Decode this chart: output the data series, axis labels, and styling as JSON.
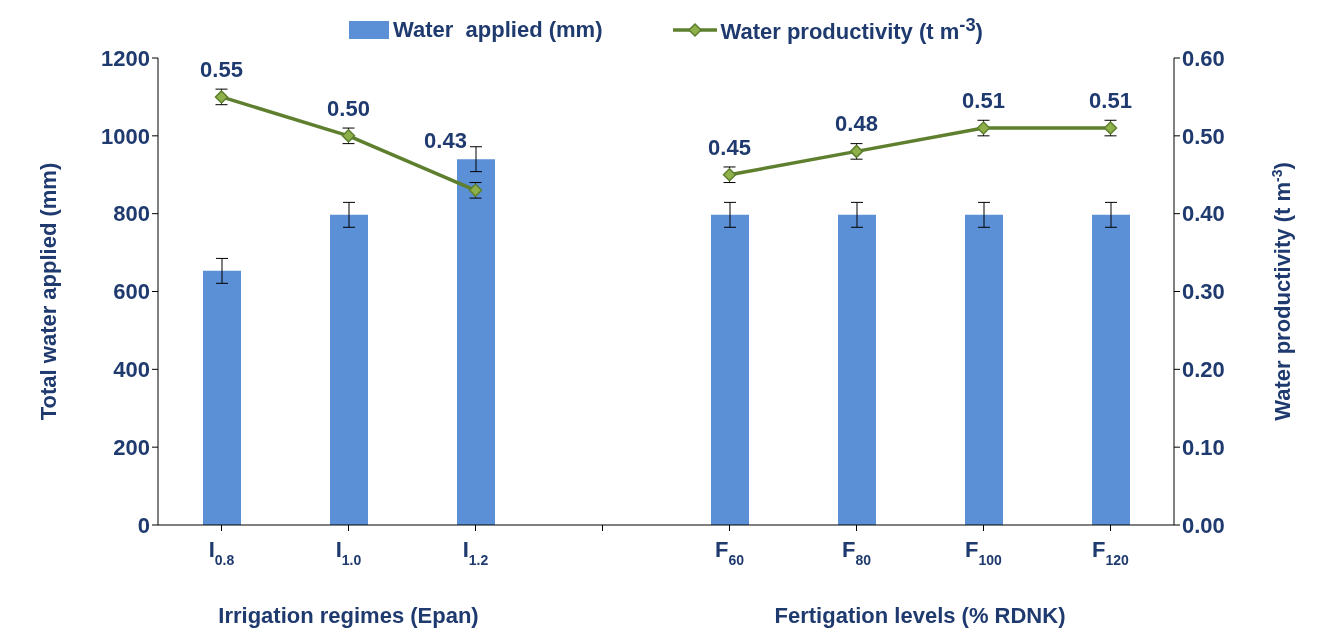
{
  "chart_data": {
    "type": "bar",
    "categories": [
      "I$_{0.8}$",
      "I$_{1.0}$",
      "I$_{1.2}$",
      null,
      "F$_{60}$",
      "F$_{80}$",
      "F$_{100}$",
      "F$_{120}$"
    ],
    "series": [
      {
        "name": "Water  applied (mm)",
        "color": "#5b8fd6",
        "values": [
          653,
          797,
          940,
          null,
          797,
          797,
          797,
          797
        ],
        "errors": [
          32,
          32,
          32,
          null,
          32,
          32,
          32,
          32
        ]
      },
      {
        "name": "Water productivity (t m$^{-3}$)",
        "type": "line",
        "axis": "y2",
        "color": "#5e7f2e",
        "values": [
          0.55,
          0.5,
          0.43,
          null,
          0.45,
          0.48,
          0.51,
          0.51
        ],
        "errors": [
          0.01,
          0.01,
          0.01,
          null,
          0.01,
          0.01,
          0.01,
          0.01
        ],
        "value_labels": [
          "0.55",
          "0.50",
          "0.43",
          null,
          "0.45",
          "0.48",
          "0.51",
          "0.51"
        ]
      }
    ],
    "ylabel": "Total water applied (mm)",
    "y2label": "Water productivity (t m$^{-3}$)",
    "ylim": [
      0,
      1200
    ],
    "yticks": [
      0,
      200,
      400,
      600,
      800,
      1000,
      1200
    ],
    "y2lim": [
      0,
      0.6
    ],
    "y2ticks": [
      {
        "value": 0,
        "label": "0.00"
      },
      {
        "value": 0.1,
        "label": "0.10"
      },
      {
        "value": 0.2,
        "label": "0.20"
      },
      {
        "value": 0.3,
        "label": "0.30"
      },
      {
        "value": 0.4,
        "label": "0.40"
      },
      {
        "value": 0.5,
        "label": "0.50"
      },
      {
        "value": 0.6,
        "label": "0.60"
      }
    ],
    "annotations": [
      "Irrigation regimes (Epan)",
      "Fertigation levels (% RDNK)"
    ],
    "legend": "top",
    "marker": "diamond",
    "line_style": "solid",
    "grid": false
  }
}
